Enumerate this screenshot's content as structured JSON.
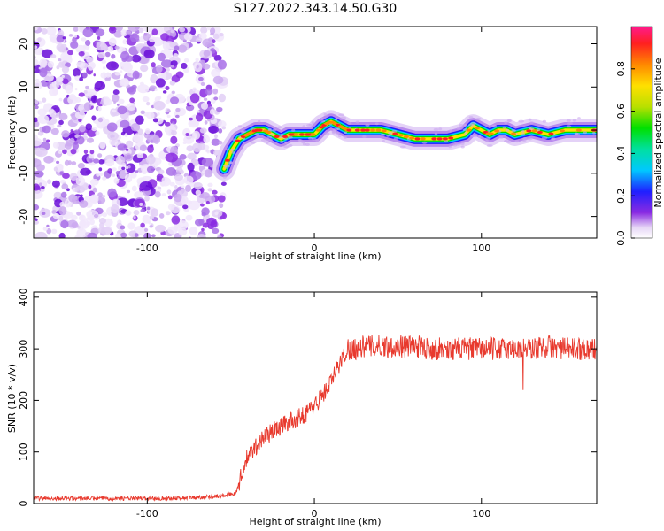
{
  "title": "S127.2022.343.14.50.G30",
  "colors": {
    "snr_line": "#e83a2e",
    "spectrum_low": "#8a2be2"
  },
  "chart_data": [
    {
      "type": "heatmap",
      "xlabel": "Height of straight line (km)",
      "ylabel": "Frequency (Hz)",
      "xlim": [
        -168,
        169
      ],
      "ylim": [
        -25,
        24
      ],
      "xticks": [
        -100,
        0,
        100
      ],
      "yticks": [
        -20,
        -10,
        0,
        10,
        20
      ],
      "noise_region_x": [
        -168,
        -54
      ],
      "ridge": {
        "x": [
          -54,
          -50,
          -45,
          -40,
          -35,
          -30,
          -25,
          -20,
          -15,
          -10,
          -5,
          0,
          5,
          10,
          15,
          20,
          25,
          30,
          40,
          50,
          60,
          70,
          80,
          90,
          95,
          100,
          105,
          110,
          115,
          120,
          130,
          140,
          150,
          160,
          169
        ],
        "y": [
          -9,
          -5,
          -2,
          -1,
          0,
          0,
          -1,
          -2,
          -1,
          -1,
          -1,
          -1,
          1,
          2,
          1,
          0,
          0,
          0,
          0,
          -1,
          -2,
          -2,
          -2,
          -1,
          1,
          0,
          -1,
          0,
          0,
          -1,
          0,
          -1,
          0,
          0,
          0
        ]
      },
      "colorbar": {
        "label": "Normalized spectral amplitude",
        "range": [
          0,
          1
        ],
        "ticks": [
          "0.0",
          "0.2",
          "0.4",
          "0.6",
          "0.8"
        ]
      }
    },
    {
      "type": "line",
      "xlabel": "Height of straight line (km)",
      "ylabel": "SNR (10 * v/v)",
      "xlim": [
        -168,
        169
      ],
      "ylim": [
        0,
        410
      ],
      "xticks": [
        -100,
        0,
        100
      ],
      "yticks": [
        0,
        100,
        200,
        300,
        400
      ],
      "series": [
        {
          "x": [
            -168,
            -150,
            -130,
            -110,
            -90,
            -70,
            -55,
            -47,
            -43,
            -40,
            -35,
            -30,
            -25,
            -20,
            -15,
            -10,
            -5,
            0,
            5,
            10,
            15,
            20,
            25,
            30,
            40,
            50,
            60,
            70,
            80,
            90,
            100,
            110,
            120,
            125,
            130,
            140,
            150,
            160,
            169
          ],
          "y": [
            10,
            10,
            10,
            10,
            10,
            12,
            15,
            20,
            60,
            90,
            110,
            130,
            140,
            150,
            160,
            165,
            175,
            190,
            210,
            235,
            270,
            300,
            300,
            305,
            305,
            305,
            305,
            300,
            300,
            300,
            300,
            300,
            300,
            300,
            300,
            305,
            300,
            300,
            300
          ]
        }
      ],
      "annotations": [
        {
          "x": 125,
          "y": 410
        },
        {
          "x": 125,
          "y": 220
        }
      ]
    }
  ]
}
